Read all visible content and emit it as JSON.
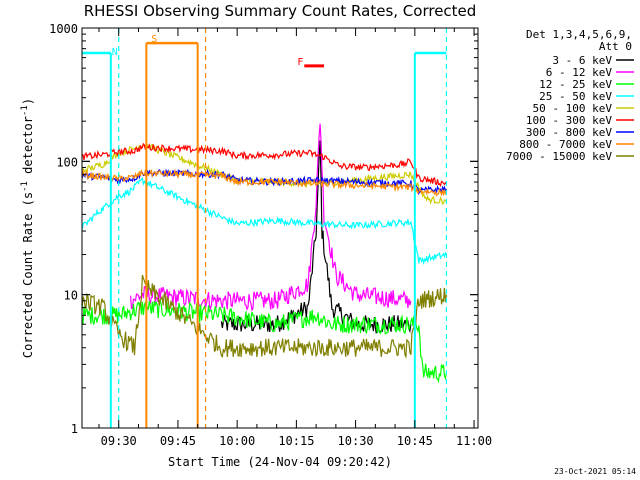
{
  "chart_data": {
    "type": "line",
    "title": "RHESSI Observing Summary Count Rates, Corrected",
    "xlabel": "Start Time (24-Nov-04 09:20:42)",
    "ylabel_main": "Corrected Count Rate (s",
    "ylabel_sup": "-1",
    "ylabel_tail": " detector",
    "ylabel_end": ")",
    "yscale": "log",
    "ylim": [
      1,
      1000
    ],
    "xlim": [
      "09:20:42",
      "11:01:00"
    ],
    "x_ticks": [
      "09:30",
      "09:45",
      "10:00",
      "10:15",
      "10:30",
      "10:45",
      "11:00"
    ],
    "y_ticks": [
      "1",
      "10",
      "100",
      "1000"
    ],
    "legend_header": [
      "Det 1,3,4,5,6,9,",
      "Att 0"
    ],
    "footer_date": "23-Oct-2021 05:14",
    "series": [
      {
        "name": "3 - 6 keV",
        "color": "#000000",
        "points": [
          [
            "09:20:42",
            null
          ],
          [
            "09:36",
            null
          ],
          [
            "09:56",
            6
          ],
          [
            "10:10",
            6
          ],
          [
            "10:18",
            8
          ],
          [
            "10:20",
            30
          ],
          [
            "10:21",
            140
          ],
          [
            "10:21.5",
            30
          ],
          [
            "10:24",
            8
          ],
          [
            "10:30",
            6
          ],
          [
            "10:44",
            6
          ],
          [
            "10:45",
            null
          ]
        ]
      },
      {
        "name": "6 - 12 keV",
        "color": "#ff00ff",
        "points": [
          [
            "09:33",
            9
          ],
          [
            "09:36",
            10
          ],
          [
            "09:56",
            9
          ],
          [
            "10:10",
            9
          ],
          [
            "10:18",
            12
          ],
          [
            "10:20",
            50
          ],
          [
            "10:21",
            210
          ],
          [
            "10:22",
            40
          ],
          [
            "10:25",
            14
          ],
          [
            "10:30",
            10
          ],
          [
            "10:44",
            9
          ],
          [
            "10:45",
            null
          ]
        ]
      },
      {
        "name": "12 - 25 keV",
        "color": "#00ff00",
        "points": [
          [
            "09:20:42",
            7
          ],
          [
            "09:30",
            7
          ],
          [
            "09:36",
            8
          ],
          [
            "09:56",
            7
          ],
          [
            "10:10",
            6
          ],
          [
            "10:20",
            7
          ],
          [
            "10:24",
            6
          ],
          [
            "10:44",
            6
          ],
          [
            "10:46",
            6
          ],
          [
            "10:47",
            2.6
          ],
          [
            "10:53",
            2.6
          ]
        ]
      },
      {
        "name": "25 - 50 keV",
        "color": "#00ffff",
        "points": [
          [
            "09:20:42",
            32
          ],
          [
            "09:25",
            42
          ],
          [
            "09:30",
            55
          ],
          [
            "09:33",
            60
          ],
          [
            "09:36",
            72
          ],
          [
            "09:56",
            38
          ],
          [
            "10:00",
            34
          ],
          [
            "10:10",
            36
          ],
          [
            "10:20",
            34
          ],
          [
            "10:30",
            33
          ],
          [
            "10:44",
            35
          ],
          [
            "10:46",
            18
          ],
          [
            "10:53",
            20
          ]
        ]
      },
      {
        "name": "50 - 100 keV",
        "color": "#cccc00",
        "points": [
          [
            "09:20:42",
            85
          ],
          [
            "09:26",
            95
          ],
          [
            "09:30",
            115
          ],
          [
            "09:34",
            125
          ],
          [
            "09:36",
            135
          ],
          [
            "09:56",
            80
          ],
          [
            "10:00",
            72
          ],
          [
            "10:10",
            70
          ],
          [
            "10:20",
            68
          ],
          [
            "10:30",
            72
          ],
          [
            "10:44",
            80
          ],
          [
            "10:48",
            52
          ],
          [
            "10:53",
            50
          ]
        ]
      },
      {
        "name": "100 - 300 keV",
        "color": "#ff0000",
        "points": [
          [
            "09:20:42",
            108
          ],
          [
            "09:26",
            112
          ],
          [
            "09:30",
            118
          ],
          [
            "09:34",
            120
          ],
          [
            "09:36",
            128
          ],
          [
            "09:56",
            120
          ],
          [
            "10:00",
            110
          ],
          [
            "10:10",
            112
          ],
          [
            "10:18",
            116
          ],
          [
            "10:22",
            108
          ],
          [
            "10:26",
            92
          ],
          [
            "10:32",
            90
          ],
          [
            "10:42",
            95
          ],
          [
            "10:44",
            100
          ],
          [
            "10:46",
            75
          ],
          [
            "10:53",
            68
          ]
        ]
      },
      {
        "name": "300 - 800 keV",
        "color": "#0000ff",
        "points": [
          [
            "09:20:42",
            78
          ],
          [
            "09:26",
            76
          ],
          [
            "09:30",
            72
          ],
          [
            "09:34",
            75
          ],
          [
            "09:36",
            82
          ],
          [
            "09:56",
            80
          ],
          [
            "10:00",
            72
          ],
          [
            "10:10",
            70
          ],
          [
            "10:20",
            72
          ],
          [
            "10:30",
            70
          ],
          [
            "10:44",
            68
          ],
          [
            "10:46",
            60
          ],
          [
            "10:53",
            62
          ]
        ]
      },
      {
        "name": "800 - 7000 keV",
        "color": "#ff8800",
        "points": [
          [
            "09:20:42",
            80
          ],
          [
            "09:26",
            76
          ],
          [
            "09:30",
            74
          ],
          [
            "09:34",
            76
          ],
          [
            "09:36",
            82
          ],
          [
            "09:56",
            78
          ],
          [
            "10:00",
            70
          ],
          [
            "10:10",
            70
          ],
          [
            "10:20",
            68
          ],
          [
            "10:30",
            66
          ],
          [
            "10:44",
            64
          ],
          [
            "10:46",
            60
          ],
          [
            "10:53",
            58
          ]
        ]
      },
      {
        "name": "7000 - 15000 keV",
        "color": "#808000",
        "points": [
          [
            "09:20:42",
            9
          ],
          [
            "09:26",
            8
          ],
          [
            "09:30",
            5
          ],
          [
            "09:34",
            4
          ],
          [
            "09:36",
            12
          ],
          [
            "09:56",
            4
          ],
          [
            "10:00",
            4
          ],
          [
            "10:10",
            4
          ],
          [
            "10:20",
            4
          ],
          [
            "10:30",
            4
          ],
          [
            "10:44",
            4
          ],
          [
            "10:46",
            9
          ],
          [
            "10:53",
            10
          ]
        ]
      }
    ],
    "annotations": [
      {
        "label": "N",
        "color": "#00ffff",
        "x": "09:29",
        "segments": [
          {
            "from": "09:20:42",
            "to": "09:28",
            "level": 650
          },
          {
            "from": "10:45",
            "to": "10:53",
            "level": 650
          }
        ]
      },
      {
        "label": "S",
        "color": "#ff8800",
        "x": "09:39",
        "segments": [
          {
            "from": "09:37",
            "to": "09:50",
            "level": 770
          }
        ]
      },
      {
        "label": "F",
        "color": "#ff0000",
        "x": "10:16",
        "segments": [
          {
            "from": "10:17",
            "to": "10:22",
            "level": 520
          }
        ]
      }
    ],
    "vertical_markers": [
      {
        "x": "09:28",
        "color": "#00ffff",
        "style": "solid",
        "range": [
          1,
          650
        ]
      },
      {
        "x": "09:30",
        "color": "#00ffff",
        "style": "dashed"
      },
      {
        "x": "09:37",
        "color": "#ff8800",
        "style": "solid",
        "range": [
          1,
          770
        ]
      },
      {
        "x": "09:50",
        "color": "#ff8800",
        "style": "solid",
        "range": [
          1,
          770
        ]
      },
      {
        "x": "09:52",
        "color": "#ff8800",
        "style": "dashed"
      },
      {
        "x": "10:45",
        "color": "#00ffff",
        "style": "solid",
        "range": [
          1,
          650
        ]
      },
      {
        "x": "10:53",
        "color": "#00ffff",
        "style": "dashed"
      }
    ]
  }
}
